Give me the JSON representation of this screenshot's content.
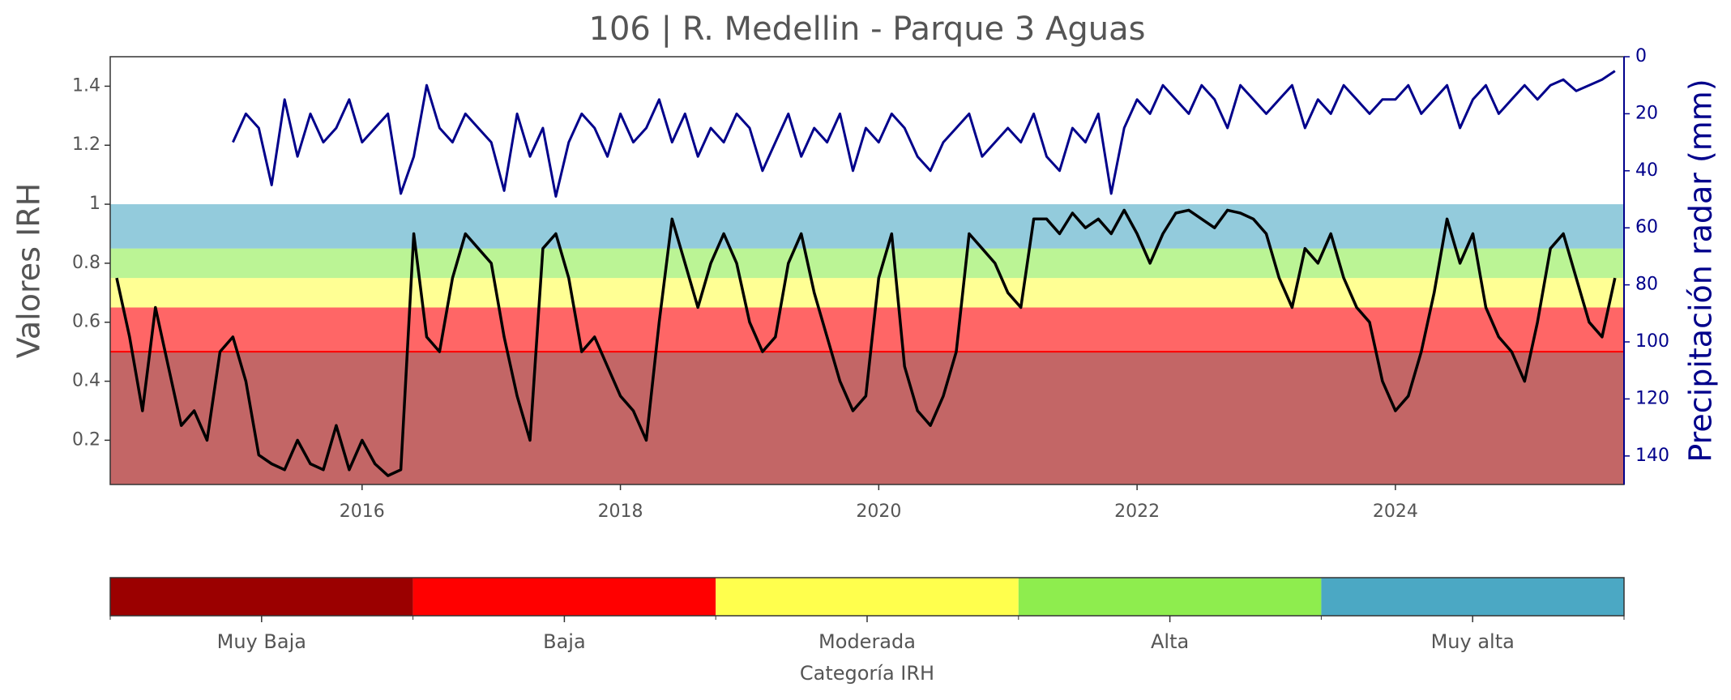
{
  "chart_data": {
    "type": "line",
    "title": "106 | R. Medellin - Parque 3 Aguas",
    "ylabel": "Valores IRH",
    "y2label": "Precipitación radar (mm)",
    "x": [
      2014.1,
      2014.2,
      2014.3,
      2014.4,
      2014.5,
      2014.6,
      2014.7,
      2014.8,
      2014.9,
      2015.0,
      2015.1,
      2015.2,
      2015.3,
      2015.4,
      2015.5,
      2015.6,
      2015.7,
      2015.8,
      2015.9,
      2016.0,
      2016.1,
      2016.2,
      2016.3,
      2016.4,
      2016.5,
      2016.6,
      2016.7,
      2016.8,
      2016.9,
      2017.0,
      2017.1,
      2017.2,
      2017.3,
      2017.4,
      2017.5,
      2017.6,
      2017.7,
      2017.8,
      2017.9,
      2018.0,
      2018.1,
      2018.2,
      2018.3,
      2018.4,
      2018.5,
      2018.6,
      2018.7,
      2018.8,
      2018.9,
      2019.0,
      2019.1,
      2019.2,
      2019.3,
      2019.4,
      2019.5,
      2019.6,
      2019.7,
      2019.8,
      2019.9,
      2020.0,
      2020.1,
      2020.2,
      2020.3,
      2020.4,
      2020.5,
      2020.6,
      2020.7,
      2020.8,
      2020.9,
      2021.0,
      2021.1,
      2021.2,
      2021.3,
      2021.4,
      2021.5,
      2021.6,
      2021.7,
      2021.8,
      2021.9,
      2022.0,
      2022.1,
      2022.2,
      2022.3,
      2022.4,
      2022.5,
      2022.6,
      2022.7,
      2022.8,
      2022.9,
      2023.0,
      2023.1,
      2023.2,
      2023.3,
      2023.4,
      2023.5,
      2023.6,
      2023.7,
      2023.8,
      2023.9,
      2024.0,
      2024.1,
      2024.2,
      2024.3,
      2024.4,
      2024.5,
      2024.6,
      2024.7,
      2024.8,
      2024.9,
      2025.0,
      2025.1,
      2025.2,
      2025.3,
      2025.4,
      2025.5,
      2025.6,
      2025.7
    ],
    "series": [
      {
        "color": "#000000",
        "values": [
          0.75,
          0.55,
          0.3,
          0.65,
          0.45,
          0.25,
          0.3,
          0.2,
          0.5,
          0.55,
          0.4,
          0.15,
          0.12,
          0.1,
          0.2,
          0.12,
          0.1,
          0.25,
          0.1,
          0.2,
          0.12,
          0.08,
          0.1,
          0.9,
          0.55,
          0.5,
          0.75,
          0.9,
          0.85,
          0.8,
          0.55,
          0.35,
          0.2,
          0.85,
          0.9,
          0.75,
          0.5,
          0.55,
          0.45,
          0.35,
          0.3,
          0.2,
          0.6,
          0.95,
          0.8,
          0.65,
          0.8,
          0.9,
          0.8,
          0.6,
          0.5,
          0.55,
          0.8,
          0.9,
          0.7,
          0.55,
          0.4,
          0.3,
          0.35,
          0.75,
          0.9,
          0.45,
          0.3,
          0.25,
          0.35,
          0.5,
          0.9,
          0.85,
          0.8,
          0.7,
          0.65,
          0.95,
          0.95,
          0.9,
          0.97,
          0.92,
          0.95,
          0.9,
          0.98,
          0.9,
          0.8,
          0.9,
          0.97,
          0.98,
          0.95,
          0.92,
          0.98,
          0.97,
          0.95,
          0.9,
          0.75,
          0.65,
          0.85,
          0.8,
          0.9,
          0.75,
          0.65,
          0.6,
          0.4,
          0.3,
          0.35,
          0.5,
          0.7,
          0.95,
          0.8,
          0.9,
          0.65,
          0.55,
          0.5,
          0.4,
          0.6,
          0.85,
          0.9,
          0.75,
          0.6,
          0.55,
          0.75
        ]
      },
      {
        "color": "#00008b",
        "axis": "y2",
        "values": [
          null,
          null,
          null,
          null,
          null,
          null,
          null,
          null,
          null,
          30,
          20,
          25,
          45,
          15,
          35,
          20,
          30,
          25,
          15,
          30,
          25,
          20,
          48,
          35,
          10,
          25,
          30,
          20,
          25,
          30,
          47,
          20,
          35,
          25,
          49,
          30,
          20,
          25,
          35,
          20,
          30,
          25,
          15,
          30,
          20,
          35,
          25,
          30,
          20,
          25,
          40,
          30,
          20,
          35,
          25,
          30,
          20,
          40,
          25,
          30,
          20,
          25,
          35,
          40,
          30,
          25,
          20,
          35,
          30,
          25,
          30,
          20,
          35,
          40,
          25,
          30,
          20,
          48,
          25,
          15,
          20,
          10,
          15,
          20,
          10,
          15,
          25,
          10,
          15,
          20,
          15,
          10,
          25,
          15,
          20,
          10,
          15,
          20,
          15,
          15,
          10,
          20,
          15,
          10,
          25,
          15,
          10,
          20,
          15,
          10,
          15,
          10,
          8,
          12,
          10,
          8,
          5
        ]
      }
    ],
    "xlim": [
      2014.05,
      2025.77
    ],
    "xticks": [
      2016,
      2018,
      2020,
      2022,
      2024
    ],
    "ylim": [
      0.05,
      1.5
    ],
    "yticks": [
      0.2,
      0.4,
      0.6,
      0.8,
      1.0,
      1.2,
      1.4
    ],
    "y2lim": [
      150,
      0
    ],
    "y2ticks": [
      0,
      20,
      40,
      60,
      80,
      100,
      120,
      140
    ],
    "colorbar": {
      "label": "Categoría IRH",
      "categories": [
        "Muy Baja",
        "Baja",
        "Moderada",
        "Alta",
        "Muy alta"
      ],
      "colors": [
        "#9b0000",
        "#ff0000",
        "#ffff4d",
        "#8eed4e",
        "#4ba8c4"
      ],
      "upper_bounds": [
        0.5,
        0.65,
        0.75,
        0.85,
        1.0
      ]
    }
  }
}
